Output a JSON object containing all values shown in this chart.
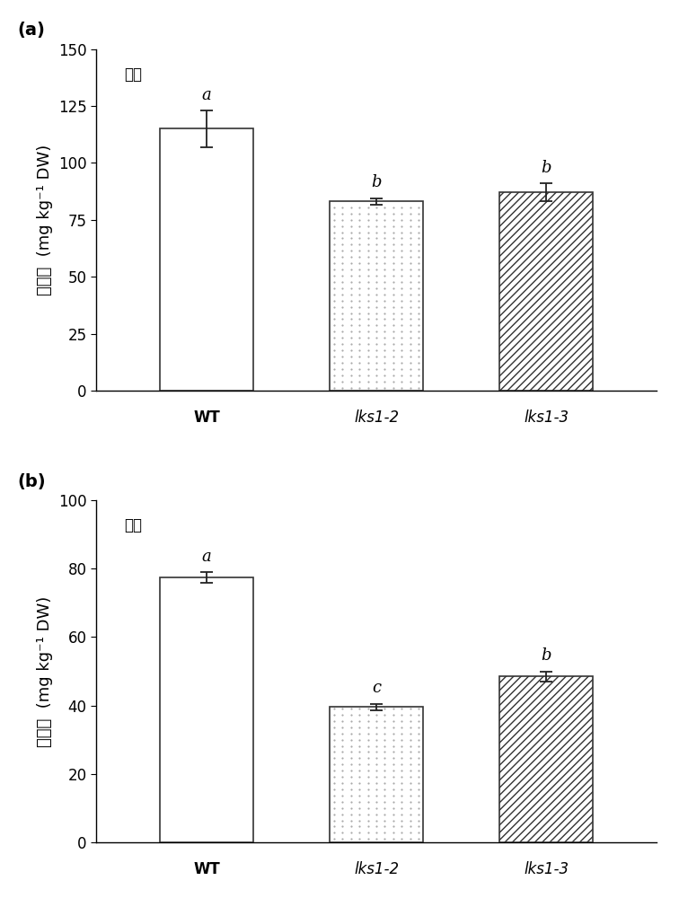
{
  "panel_a": {
    "title": "叶片",
    "categories": [
      "WT",
      "lks1-2",
      "lks1-3"
    ],
    "values": [
      115.0,
      83.0,
      87.0
    ],
    "errors": [
      8.0,
      1.5,
      4.0
    ],
    "letters": [
      "a",
      "b",
      "b"
    ],
    "ylim": [
      0,
      150
    ],
    "yticks": [
      0,
      25,
      50,
      75,
      100,
      125,
      150
    ],
    "ylabel": "鐵含量  (mg kg⁻¹ DW)"
  },
  "panel_b": {
    "title": "籒粒",
    "categories": [
      "WT",
      "lks1-2",
      "lks1-3"
    ],
    "values": [
      77.5,
      39.5,
      48.5
    ],
    "errors": [
      1.5,
      1.0,
      1.5
    ],
    "letters": [
      "a",
      "c",
      "b"
    ],
    "ylim": [
      0,
      100
    ],
    "yticks": [
      0,
      20,
      40,
      60,
      80,
      100
    ],
    "ylabel": "鐵含量  (mg kg⁻¹ DW)"
  },
  "bar_edgecolor": "#333333",
  "label_fontsize": 13,
  "tick_fontsize": 12,
  "letter_fontsize": 13,
  "title_fontsize": 12,
  "panel_label_fontsize": 14,
  "bar_width": 0.55,
  "figsize": [
    7.56,
    10.0
  ],
  "dpi": 100,
  "dot_color": "#aaaaaa",
  "hatch_color": "#555555"
}
